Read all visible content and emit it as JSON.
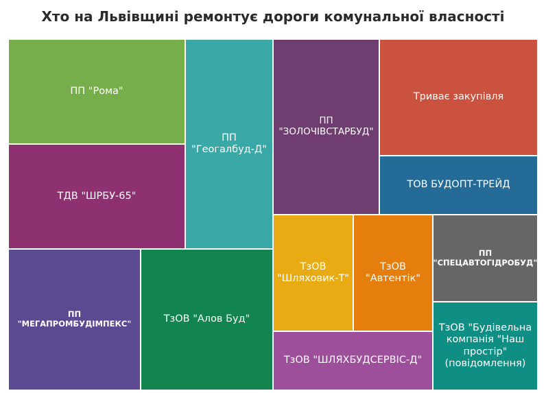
{
  "chart_data": {
    "type": "treemap",
    "title": "Хто на Львівщині ремонтує дороги комунальної власності",
    "items": [
      {
        "label": "ПП \"Рома\"",
        "color": "#76ae4b"
      },
      {
        "label": "ТДВ \"ШРБУ-65\"",
        "color": "#8e3170"
      },
      {
        "label": "ПП\n\"Геогалбуд-Д\"",
        "color": "#3aa8a7"
      },
      {
        "label": "ПП\n\"ЗОЛОЧІВСТАРБУД\"",
        "color": "#6f3d70"
      },
      {
        "label": "Триває закупівля",
        "color": "#cb523f"
      },
      {
        "label": "ТОВ БУДОПТ-ТРЕЙД",
        "color": "#246b98"
      },
      {
        "label": "ПП\n\"МЕГАПРОМБУДІМПЕКС\"",
        "color": "#5b4a91"
      },
      {
        "label": "ТзОВ \"Алов Буд\"",
        "color": "#128450"
      },
      {
        "label": "ТзОВ\n\"Шляховик-Т\"",
        "color": "#e9ab14"
      },
      {
        "label": "ТзОВ\n\"Автентік\"",
        "color": "#e57e0c"
      },
      {
        "label": "ПП\n\"СПЕЦАВТОГІДРОБУД\"",
        "color": "#666666"
      },
      {
        "label": "ТзОВ \"ШЛЯХБУДСЕРВІС-Д\"",
        "color": "#9d4f9c"
      },
      {
        "label": "ТзОВ \"Будівельна\nкомпанія \"Наш\nпростір\"\n(повідомлення)",
        "color": "#0f8e83"
      }
    ]
  }
}
